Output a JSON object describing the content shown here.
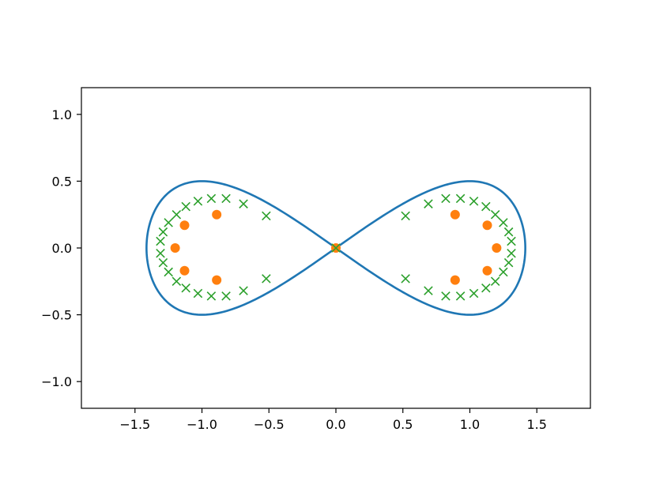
{
  "chart_data": {
    "type": "scatter",
    "title": "",
    "xlabel": "",
    "ylabel": "",
    "xlim": [
      -1.9,
      1.9
    ],
    "ylim": [
      -1.2,
      1.2
    ],
    "grid": false,
    "legend": "none",
    "x_ticks": [
      -1.5,
      -1.0,
      -0.5,
      0.0,
      0.5,
      1.0,
      1.5
    ],
    "x_tick_labels": [
      "−1.5",
      "−1.0",
      "−0.5",
      "0.0",
      "0.5",
      "1.0",
      "1.5"
    ],
    "y_ticks": [
      1.0,
      0.5,
      0.0,
      -0.5,
      -1.0
    ],
    "y_tick_labels": [
      "1.0",
      "0.5",
      "0.0",
      "−0.5",
      "−1.0"
    ],
    "curve": {
      "shape": "lemniscate of Gerono",
      "equation": "x = a*cos(t), y = b*sin(2t)",
      "a": 1.414,
      "b": 0.5,
      "color": "#1f77b4"
    },
    "series": [
      {
        "marker": "o",
        "color": "#ff7f0e",
        "points": [
          [
            0.0,
            0.0
          ],
          [
            0.89,
            0.25
          ],
          [
            1.13,
            0.17
          ],
          [
            1.2,
            0.0
          ],
          [
            1.13,
            -0.17
          ],
          [
            0.89,
            -0.24
          ],
          [
            -0.89,
            0.25
          ],
          [
            -1.13,
            0.17
          ],
          [
            -1.2,
            0.0
          ],
          [
            -1.13,
            -0.17
          ],
          [
            -0.89,
            -0.24
          ]
        ]
      },
      {
        "marker": "x",
        "color": "#2ca02c",
        "points": [
          [
            0.0,
            0.0
          ],
          [
            0.52,
            0.24
          ],
          [
            0.69,
            0.33
          ],
          [
            0.82,
            0.37
          ],
          [
            0.93,
            0.37
          ],
          [
            1.03,
            0.35
          ],
          [
            1.12,
            0.31
          ],
          [
            1.19,
            0.25
          ],
          [
            1.25,
            0.19
          ],
          [
            1.29,
            0.12
          ],
          [
            1.31,
            0.05
          ],
          [
            1.31,
            -0.04
          ],
          [
            1.29,
            -0.11
          ],
          [
            1.25,
            -0.18
          ],
          [
            1.19,
            -0.25
          ],
          [
            1.12,
            -0.3
          ],
          [
            1.03,
            -0.34
          ],
          [
            0.93,
            -0.36
          ],
          [
            0.82,
            -0.36
          ],
          [
            0.69,
            -0.32
          ],
          [
            0.52,
            -0.23
          ],
          [
            -0.52,
            0.24
          ],
          [
            -0.69,
            0.33
          ],
          [
            -0.82,
            0.37
          ],
          [
            -0.93,
            0.37
          ],
          [
            -1.03,
            0.35
          ],
          [
            -1.12,
            0.31
          ],
          [
            -1.19,
            0.25
          ],
          [
            -1.25,
            0.19
          ],
          [
            -1.29,
            0.12
          ],
          [
            -1.31,
            0.05
          ],
          [
            -1.31,
            -0.04
          ],
          [
            -1.29,
            -0.11
          ],
          [
            -1.25,
            -0.18
          ],
          [
            -1.19,
            -0.25
          ],
          [
            -1.12,
            -0.3
          ],
          [
            -1.03,
            -0.34
          ],
          [
            -0.93,
            -0.36
          ],
          [
            -0.82,
            -0.36
          ],
          [
            -0.69,
            -0.32
          ],
          [
            -0.52,
            -0.23
          ]
        ]
      }
    ]
  }
}
